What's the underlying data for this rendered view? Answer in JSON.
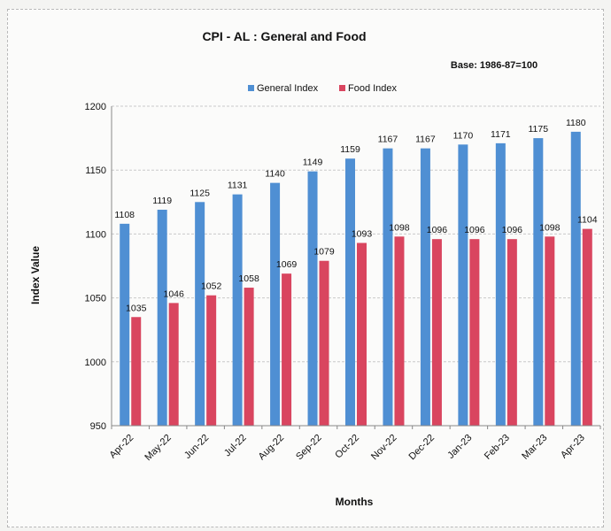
{
  "chart_data": {
    "type": "bar",
    "title": "CPI - AL : General and Food",
    "subtitle": "Base: 1986-87=100",
    "xlabel": "Months",
    "ylabel": "Index Value",
    "ylim": [
      950,
      1200
    ],
    "yticks": [
      950,
      1000,
      1050,
      1100,
      1150,
      1200
    ],
    "grid": true,
    "legend_position": "top",
    "categories": [
      "Apr-22",
      "May-22",
      "Jun-22",
      "Jul-22",
      "Aug-22",
      "Sep-22",
      "Oct-22",
      "Nov-22",
      "Dec-22",
      "Jan-23",
      "Feb-23",
      "Mar-23",
      "Apr-23"
    ],
    "series": [
      {
        "name": "General Index",
        "color": "#4f8fd3",
        "values": [
          1108,
          1119,
          1125,
          1131,
          1140,
          1149,
          1159,
          1167,
          1167,
          1170,
          1171,
          1175,
          1180
        ]
      },
      {
        "name": "Food Index",
        "color": "#d9455f",
        "values": [
          1035,
          1046,
          1052,
          1058,
          1069,
          1079,
          1093,
          1098,
          1096,
          1096,
          1096,
          1098,
          1104
        ]
      }
    ]
  }
}
